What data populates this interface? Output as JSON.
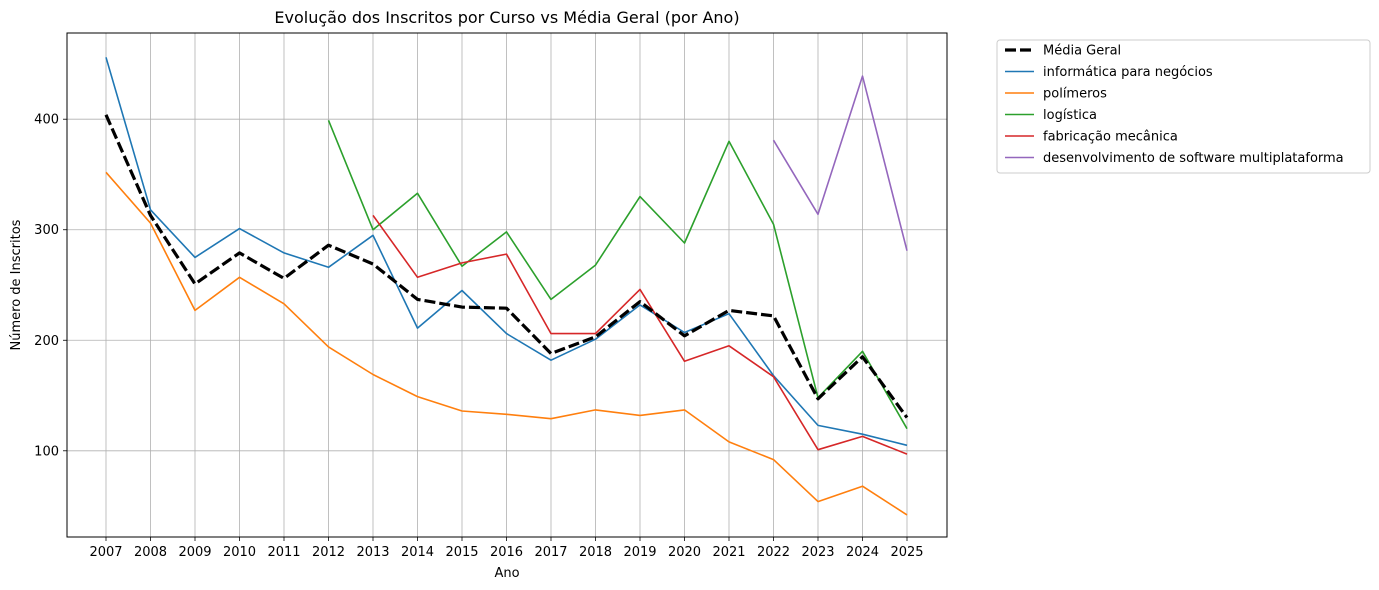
{
  "chart_data": {
    "type": "line",
    "title": "Evolução dos Inscritos por Curso vs Média Geral (por Ano)",
    "xlabel": "Ano",
    "ylabel": "Número de Inscritos",
    "x": [
      "2007",
      "2008",
      "2009",
      "2010",
      "2011",
      "2012",
      "2013",
      "2014",
      "2015",
      "2016",
      "2017",
      "2018",
      "2019",
      "2020",
      "2021",
      "2022",
      "2023",
      "2024",
      "2025"
    ],
    "ylim": [
      22,
      478
    ],
    "yticks": [
      100,
      200,
      300,
      400
    ],
    "grid": true,
    "legend_position": "outside-top-right",
    "series": [
      {
        "name": "Média Geral",
        "color": "#000000",
        "dashed": true,
        "values": [
          404,
          313,
          251,
          279,
          256,
          286,
          269,
          237,
          230,
          229,
          188,
          203,
          235,
          204,
          227,
          222,
          147,
          185,
          130
        ]
      },
      {
        "name": "informática para negócios",
        "color": "#1f77b4",
        "values": [
          456,
          318,
          275,
          301,
          279,
          266,
          295,
          211,
          245,
          206,
          182,
          201,
          232,
          207,
          224,
          168,
          123,
          115,
          105
        ]
      },
      {
        "name": "polímeros",
        "color": "#ff7f0e",
        "values": [
          352,
          306,
          227,
          257,
          233,
          194,
          169,
          149,
          136,
          133,
          129,
          137,
          132,
          137,
          108,
          92,
          54,
          68,
          42
        ]
      },
      {
        "name": "logística",
        "color": "#2ca02c",
        "values": [
          null,
          null,
          null,
          null,
          null,
          399,
          300,
          333,
          267,
          298,
          237,
          268,
          330,
          288,
          380,
          305,
          148,
          190,
          120
        ]
      },
      {
        "name": "fabricação mecânica",
        "color": "#d62728",
        "values": [
          null,
          null,
          null,
          null,
          null,
          null,
          313,
          257,
          270,
          278,
          206,
          206,
          246,
          181,
          195,
          167,
          101,
          113,
          97
        ]
      },
      {
        "name": "desenvolvimento de software multiplataforma",
        "color": "#9467bd",
        "values": [
          null,
          null,
          null,
          null,
          null,
          null,
          null,
          null,
          null,
          null,
          null,
          null,
          null,
          null,
          null,
          381,
          314,
          439,
          281
        ]
      }
    ]
  }
}
